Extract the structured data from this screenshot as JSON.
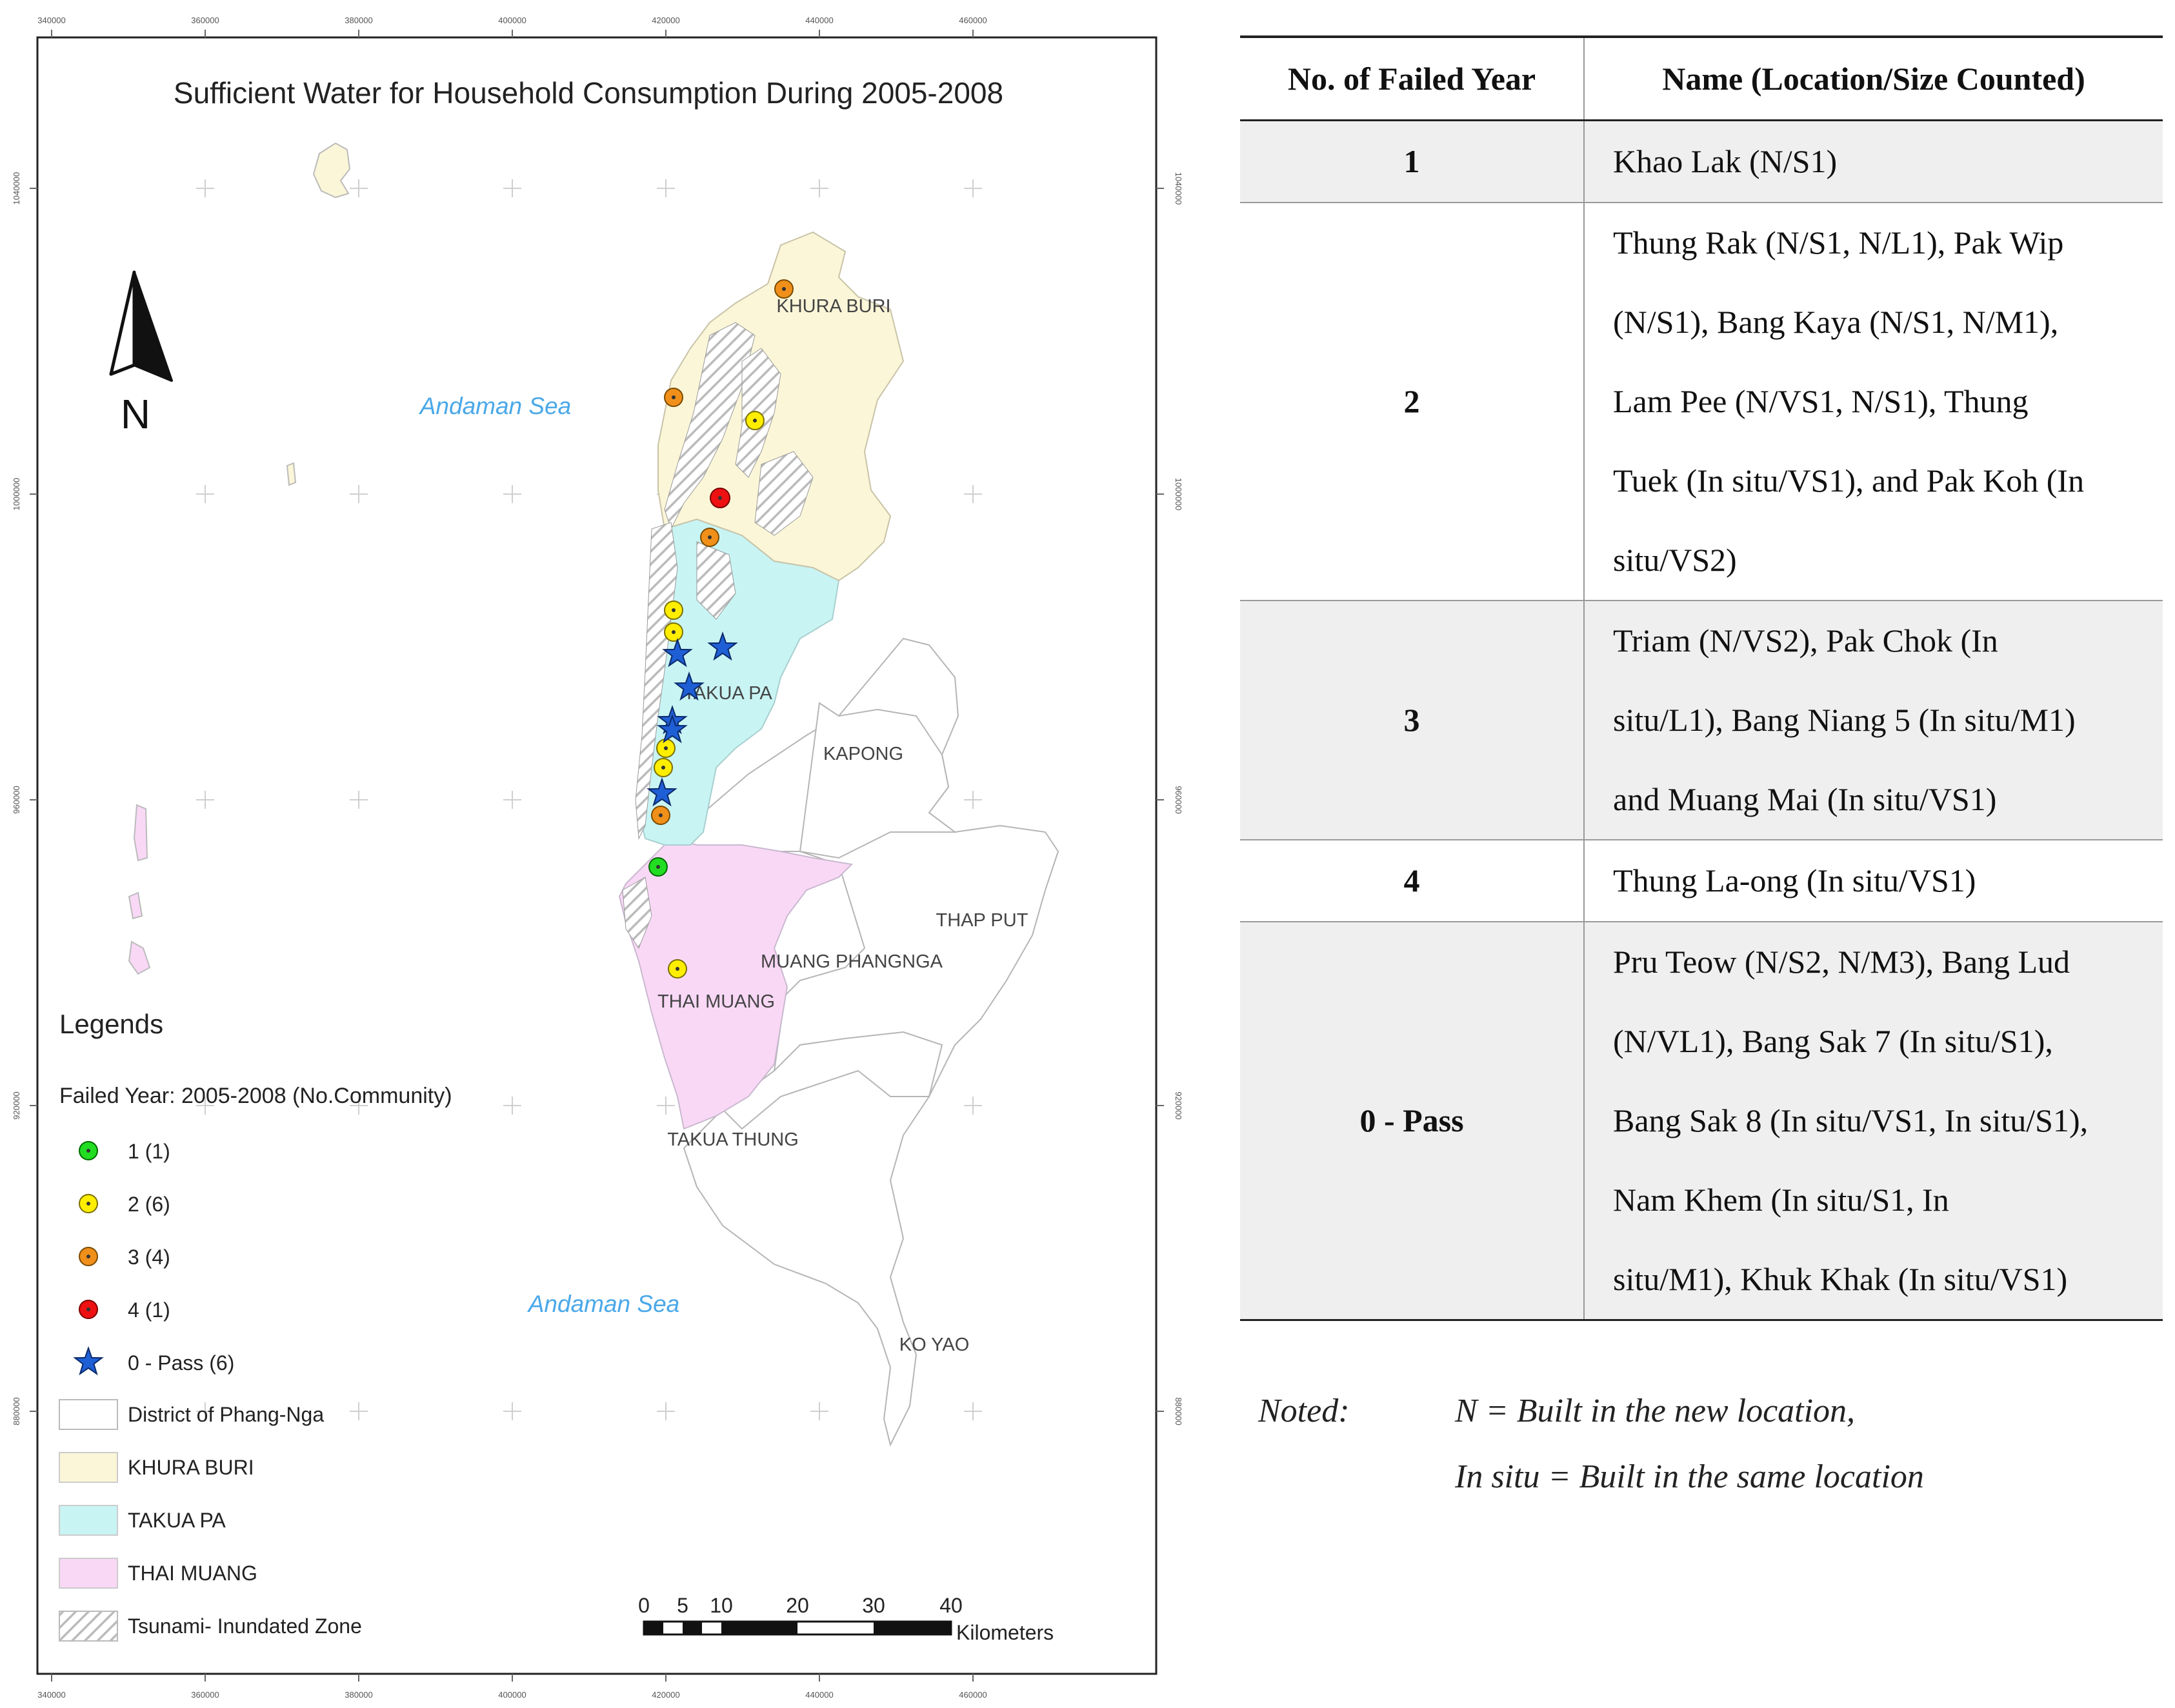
{
  "map": {
    "title": "Sufficient Water for Household Consumption During 2005-2008",
    "north_label": "N",
    "sea_labels": [
      "Andaman Sea",
      "Andaman Sea"
    ],
    "place_labels": [
      "KHURA BURI",
      "TAKUA PA",
      "KAPONG",
      "THAP PUT",
      "MUANG PHANGNGA",
      "THAI MUANG",
      "TAKUA THUNG",
      "KO YAO"
    ],
    "x_ticks": [
      "340000",
      "360000",
      "380000",
      "400000",
      "420000",
      "440000",
      "460000"
    ],
    "y_ticks": [
      "1040000",
      "1000000",
      "960000",
      "920000",
      "880000"
    ],
    "scale_bar": {
      "labels": [
        "0",
        "5",
        "10",
        "20",
        "30",
        "40"
      ],
      "unit": "Kilometers"
    },
    "legend": {
      "heading": "Legends",
      "subheading": "Failed Year: 2005-2008 (No.Community)",
      "items": [
        {
          "label": "1 (1)",
          "symbol": "dot",
          "color": "#22dd22"
        },
        {
          "label": "2 (6)",
          "symbol": "dot",
          "color": "#ffee00"
        },
        {
          "label": "3 (4)",
          "symbol": "dot",
          "color": "#f0901a"
        },
        {
          "label": "4 (1)",
          "symbol": "dot",
          "color": "#ee1111"
        },
        {
          "label": "0 - Pass (6)",
          "symbol": "star",
          "color": "#1f5fd6"
        },
        {
          "label": "District of Phang-Nga",
          "symbol": "box",
          "color": "#ffffff"
        },
        {
          "label": "KHURA BURI",
          "symbol": "box",
          "color": "#fbf6d8"
        },
        {
          "label": "TAKUA PA",
          "symbol": "box",
          "color": "#c8f4f4"
        },
        {
          "label": "THAI MUANG",
          "symbol": "box",
          "color": "#f9d8f6"
        },
        {
          "label": "Tsunami- Inundated Zone",
          "symbol": "hatch",
          "color": "#bbbbbb"
        }
      ]
    }
  },
  "table": {
    "headers": [
      "No. of Failed Year",
      "Name (Location/Size Counted)"
    ],
    "rows": [
      {
        "failed": "1",
        "lines": [
          "Khao Lak (N/S1)"
        ]
      },
      {
        "failed": "2",
        "lines": [
          "Thung Rak (N/S1, N/L1), Pak Wip",
          "(N/S1), Bang Kaya (N/S1, N/M1),",
          "Lam Pee (N/VS1, N/S1), Thung",
          "Tuek (In situ/VS1), and Pak Koh (In",
          "situ/VS2)"
        ]
      },
      {
        "failed": "3",
        "lines": [
          "Triam (N/VS2), Pak Chok (In",
          "situ/L1), Bang Niang 5 (In situ/M1)",
          "and Muang Mai (In situ/VS1)"
        ]
      },
      {
        "failed": "4",
        "lines": [
          "Thung La-ong (In situ/VS1)"
        ]
      },
      {
        "failed": "0 - Pass",
        "lines": [
          "Pru Teow (N/S2, N/M3), Bang Lud",
          "(N/VL1), Bang Sak 7 (In situ/S1),",
          "Bang Sak 8 (In situ/VS1, In situ/S1),",
          "Nam Khem (In situ/S1, In",
          "situ/M1), Khuk Khak (In situ/VS1)"
        ]
      }
    ]
  },
  "note": {
    "label": "Noted:",
    "lines": [
      "N = Built in the new location,",
      "In situ = Built in the same location"
    ]
  }
}
